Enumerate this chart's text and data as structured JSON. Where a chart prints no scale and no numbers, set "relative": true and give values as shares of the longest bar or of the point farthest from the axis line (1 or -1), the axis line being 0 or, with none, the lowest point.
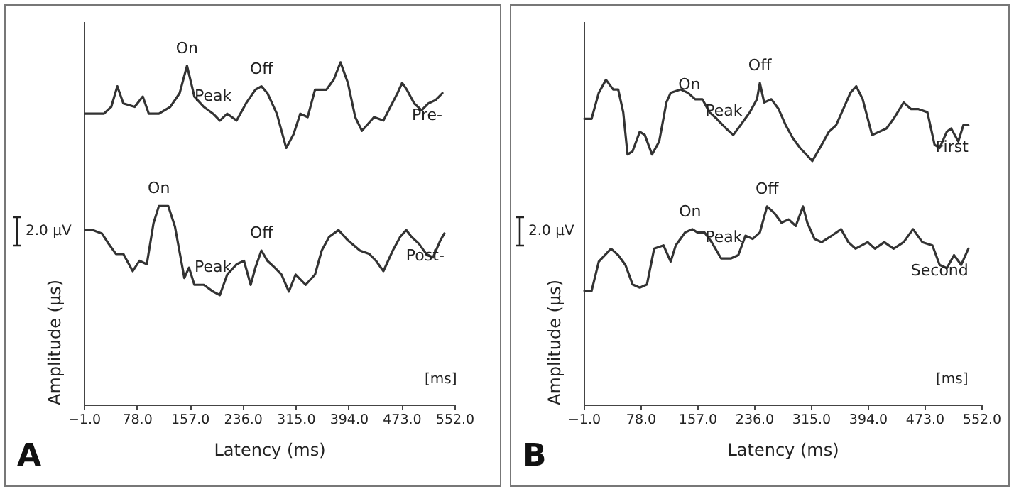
{
  "chart_data": [
    {
      "type": "line",
      "relative": true,
      "xlabel": "Latency (ms)",
      "ylabel": "Amplitude (μs)",
      "xlim": [
        -1,
        552
      ],
      "xticks": [
        {
          "value": -1,
          "label": "−1.0"
        },
        {
          "value": 78,
          "label": "78.0"
        },
        {
          "value": 157,
          "label": "157.0"
        },
        {
          "value": 236,
          "label": "236.0"
        },
        {
          "value": 315,
          "label": "315.0"
        },
        {
          "value": 394,
          "label": "394.0"
        },
        {
          "value": 473,
          "label": "473.0"
        },
        {
          "value": 552,
          "label": "552.0"
        }
      ],
      "grid": false,
      "marker": "none",
      "line_style": "solid",
      "annotations": [
        "2.0 μV",
        "[ms]",
        "A",
        {
          "text": "On",
          "x": 153,
          "y": 0.99
        },
        {
          "text": "Peak",
          "x": 192,
          "y": 0.85
        },
        {
          "text": "Off",
          "x": 264,
          "y": 0.93
        },
        {
          "text": "On",
          "x": 111,
          "y": 0.58
        },
        {
          "text": "Peak",
          "x": 192,
          "y": 0.35
        },
        {
          "text": "Off",
          "x": 264,
          "y": 0.45
        }
      ],
      "series": [
        {
          "name": "Pre-",
          "color": "#333333",
          "x": [
            1,
            29,
            40,
            49,
            58,
            75,
            87,
            96,
            111,
            128,
            142,
            153,
            164,
            178,
            192,
            202,
            213,
            227,
            241,
            255,
            264,
            273,
            287,
            301,
            312,
            322,
            333,
            344,
            361,
            372,
            382,
            393,
            404,
            414,
            432,
            446,
            467,
            474,
            481,
            492,
            503,
            513,
            524,
            534
          ],
          "values": [
            0.85,
            0.85,
            0.87,
            0.93,
            0.88,
            0.87,
            0.9,
            0.85,
            0.85,
            0.87,
            0.91,
            0.99,
            0.9,
            0.87,
            0.85,
            0.83,
            0.85,
            0.83,
            0.88,
            0.92,
            0.93,
            0.91,
            0.85,
            0.75,
            0.79,
            0.85,
            0.84,
            0.92,
            0.92,
            0.95,
            1.0,
            0.94,
            0.84,
            0.8,
            0.84,
            0.83,
            0.91,
            0.94,
            0.92,
            0.88,
            0.86,
            0.88,
            0.89,
            0.91
          ]
        },
        {
          "name": "Post-",
          "color": "#333333",
          "x": [
            1,
            12,
            26,
            36,
            47,
            58,
            72,
            82,
            93,
            103,
            111,
            125,
            135,
            149,
            156,
            164,
            178,
            192,
            202,
            213,
            227,
            238,
            248,
            255,
            264,
            273,
            284,
            294,
            305,
            315,
            330,
            344,
            354,
            365,
            379,
            393,
            411,
            425,
            435,
            446,
            460,
            471,
            480,
            488,
            499,
            510,
            520,
            531,
            537
          ],
          "values": [
            0.51,
            0.51,
            0.5,
            0.47,
            0.44,
            0.44,
            0.39,
            0.42,
            0.41,
            0.53,
            0.58,
            0.58,
            0.52,
            0.37,
            0.4,
            0.35,
            0.35,
            0.33,
            0.32,
            0.38,
            0.41,
            0.42,
            0.35,
            0.4,
            0.45,
            0.42,
            0.4,
            0.38,
            0.33,
            0.38,
            0.35,
            0.38,
            0.45,
            0.49,
            0.51,
            0.48,
            0.45,
            0.44,
            0.42,
            0.39,
            0.45,
            0.49,
            0.51,
            0.49,
            0.47,
            0.44,
            0.43,
            0.48,
            0.5
          ]
        }
      ]
    },
    {
      "type": "line",
      "relative": true,
      "xlabel": "Latency (ms)",
      "ylabel": "Amplitude (μs)",
      "xlim": [
        -1,
        552
      ],
      "xticks": [
        {
          "value": -1,
          "label": "−1.0"
        },
        {
          "value": 78,
          "label": "78.0"
        },
        {
          "value": 157,
          "label": "157.0"
        },
        {
          "value": 236,
          "label": "236.0"
        },
        {
          "value": 315,
          "label": "315.0"
        },
        {
          "value": 394,
          "label": "394.0"
        },
        {
          "value": 473,
          "label": "473.0"
        },
        {
          "value": 552,
          "label": "552.0"
        }
      ],
      "grid": false,
      "marker": "none",
      "line_style": "solid",
      "annotations": [
        "2.0 μV",
        "[ms]",
        "B",
        {
          "text": "On",
          "x": 146,
          "y": 0.93
        },
        {
          "text": "Peak",
          "x": 194,
          "y": 0.85
        },
        {
          "text": "Off",
          "x": 244,
          "y": 0.99
        },
        {
          "text": "On",
          "x": 147,
          "y": 0.54
        },
        {
          "text": "Peak",
          "x": 194,
          "y": 0.46
        },
        {
          "text": "Off",
          "x": 254,
          "y": 0.61
        }
      ],
      "series": [
        {
          "name": "First",
          "color": "#333333",
          "x": [
            0,
            10,
            20,
            30,
            40,
            47,
            54,
            60,
            67,
            77,
            84,
            94,
            104,
            114,
            120,
            134,
            144,
            154,
            164,
            174,
            184,
            197,
            207,
            217,
            230,
            240,
            244,
            250,
            260,
            270,
            280,
            290,
            300,
            317,
            330,
            340,
            350,
            360,
            370,
            378,
            387,
            400,
            410,
            420,
            430,
            444,
            454,
            464,
            477,
            487,
            494,
            504,
            510,
            520,
            527,
            534
          ],
          "values": [
            0.88,
            0.88,
            0.96,
            1.0,
            0.97,
            0.97,
            0.9,
            0.77,
            0.78,
            0.84,
            0.83,
            0.77,
            0.81,
            0.93,
            0.96,
            0.97,
            0.96,
            0.94,
            0.94,
            0.9,
            0.88,
            0.85,
            0.83,
            0.86,
            0.9,
            0.94,
            0.99,
            0.93,
            0.94,
            0.91,
            0.86,
            0.82,
            0.79,
            0.75,
            0.8,
            0.84,
            0.86,
            0.91,
            0.96,
            0.98,
            0.94,
            0.83,
            0.84,
            0.85,
            0.88,
            0.93,
            0.91,
            0.91,
            0.9,
            0.8,
            0.79,
            0.84,
            0.85,
            0.81,
            0.86,
            0.86
          ]
        },
        {
          "name": "Second",
          "color": "#333333",
          "x": [
            0,
            10,
            20,
            37,
            47,
            57,
            67,
            77,
            87,
            97,
            110,
            120,
            127,
            140,
            150,
            157,
            167,
            177,
            190,
            204,
            214,
            224,
            234,
            244,
            254,
            264,
            274,
            284,
            294,
            304,
            310,
            320,
            330,
            344,
            357,
            367,
            377,
            394,
            404,
            417,
            430,
            444,
            457,
            470,
            484,
            494,
            504,
            514,
            524,
            534
          ],
          "values": [
            0.35,
            0.35,
            0.44,
            0.48,
            0.46,
            0.43,
            0.37,
            0.36,
            0.37,
            0.48,
            0.49,
            0.44,
            0.49,
            0.53,
            0.54,
            0.53,
            0.53,
            0.5,
            0.45,
            0.45,
            0.46,
            0.52,
            0.51,
            0.53,
            0.61,
            0.59,
            0.56,
            0.57,
            0.55,
            0.61,
            0.56,
            0.51,
            0.5,
            0.52,
            0.54,
            0.5,
            0.48,
            0.5,
            0.48,
            0.5,
            0.48,
            0.5,
            0.54,
            0.5,
            0.49,
            0.43,
            0.42,
            0.46,
            0.43,
            0.48
          ]
        }
      ]
    }
  ]
}
